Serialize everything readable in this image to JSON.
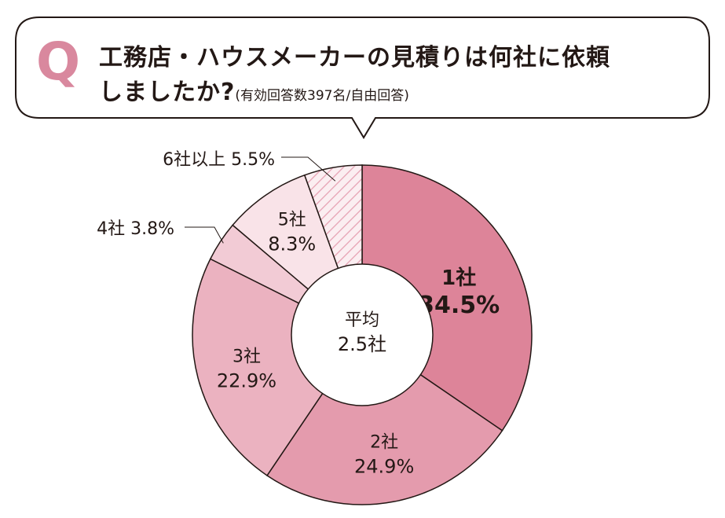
{
  "question": {
    "mark": "Q",
    "line1": "工務店・ハウスメーカーの見積りは何社に依頼",
    "line2": "しましたか?",
    "note": "(有効回答数397名/自由回答)"
  },
  "chart_data": {
    "type": "pie",
    "donut": true,
    "title": "工務店・ハウスメーカーの見積りは何社に依頼しましたか?",
    "subtitle": "(有効回答数397名/自由回答)",
    "center_label": {
      "line1": "平均",
      "line2": "2.5社"
    },
    "slices": [
      {
        "label": "1社",
        "value": 34.5,
        "value_label": "34.5%",
        "color": "#dd8499",
        "pattern": "none"
      },
      {
        "label": "2社",
        "value": 24.9,
        "value_label": "24.9%",
        "color": "#e49bad",
        "pattern": "none"
      },
      {
        "label": "3社",
        "value": 22.9,
        "value_label": "22.9%",
        "color": "#ebb2c0",
        "pattern": "none"
      },
      {
        "label": "4社",
        "value": 3.8,
        "value_label": "3.8%",
        "color": "#f2cbd5",
        "pattern": "none"
      },
      {
        "label": "5社",
        "value": 8.3,
        "value_label": "8.3%",
        "color": "#f9e3e8",
        "pattern": "none"
      },
      {
        "label": "6社以上",
        "value": 5.5,
        "value_label": "5.5%",
        "color": "#fbeef1",
        "pattern": "hatch",
        "pattern_color": "#e6a0b2"
      }
    ]
  }
}
